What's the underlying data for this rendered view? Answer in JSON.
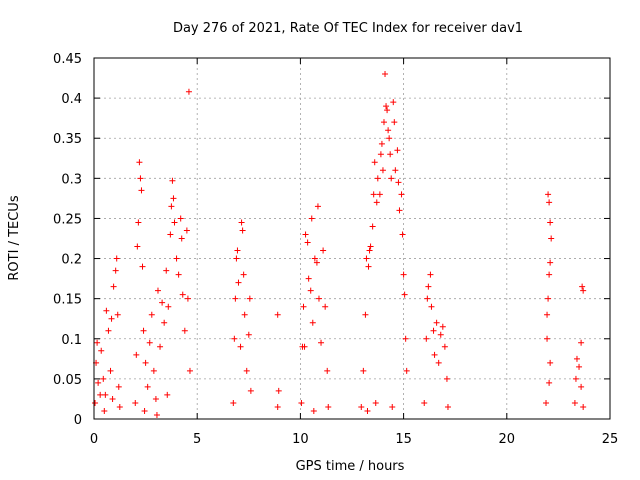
{
  "chart_data": {
    "type": "scatter",
    "title": "Day 276 of 2021, Rate Of TEC Index for receiver dav1",
    "xlabel": "GPS time / hours",
    "ylabel": "ROTI / TECUs",
    "xlim": [
      0,
      25
    ],
    "ylim": [
      0,
      0.45
    ],
    "x_ticks": [
      "0",
      "5",
      "10",
      "15",
      "20",
      "25"
    ],
    "y_ticks": [
      "0",
      "0.05",
      "0.1",
      "0.15",
      "0.2",
      "0.25",
      "0.3",
      "0.35",
      "0.4",
      "0.45"
    ],
    "grid": true,
    "legend": "none",
    "marker": "+",
    "color": "#ff0000",
    "series": [
      {
        "values": [
          {
            "x": 0.05,
            "y": 0.02
          },
          {
            "x": 0.1,
            "y": 0.07
          },
          {
            "x": 0.15,
            "y": 0.095
          },
          {
            "x": 0.2,
            "y": 0.045
          },
          {
            "x": 0.3,
            "y": 0.03
          },
          {
            "x": 0.35,
            "y": 0.085
          },
          {
            "x": 0.45,
            "y": 0.05
          },
          {
            "x": 0.55,
            "y": 0.03
          },
          {
            "x": 0.6,
            "y": 0.135
          },
          {
            "x": 0.7,
            "y": 0.11
          },
          {
            "x": 0.8,
            "y": 0.06
          },
          {
            "x": 0.85,
            "y": 0.125
          },
          {
            "x": 0.95,
            "y": 0.165
          },
          {
            "x": 1.05,
            "y": 0.185
          },
          {
            "x": 1.1,
            "y": 0.2
          },
          {
            "x": 1.15,
            "y": 0.13
          },
          {
            "x": 1.2,
            "y": 0.04
          },
          {
            "x": 1.25,
            "y": 0.015
          },
          {
            "x": 0.5,
            "y": 0.01
          },
          {
            "x": 0.9,
            "y": 0.025
          },
          {
            "x": 2.0,
            "y": 0.02
          },
          {
            "x": 2.05,
            "y": 0.08
          },
          {
            "x": 2.1,
            "y": 0.215
          },
          {
            "x": 2.15,
            "y": 0.245
          },
          {
            "x": 2.2,
            "y": 0.32
          },
          {
            "x": 2.25,
            "y": 0.3
          },
          {
            "x": 2.3,
            "y": 0.285
          },
          {
            "x": 2.35,
            "y": 0.19
          },
          {
            "x": 2.4,
            "y": 0.11
          },
          {
            "x": 2.5,
            "y": 0.07
          },
          {
            "x": 2.6,
            "y": 0.04
          },
          {
            "x": 2.7,
            "y": 0.095
          },
          {
            "x": 2.8,
            "y": 0.13
          },
          {
            "x": 2.9,
            "y": 0.06
          },
          {
            "x": 3.0,
            "y": 0.025
          },
          {
            "x": 3.1,
            "y": 0.16
          },
          {
            "x": 3.2,
            "y": 0.09
          },
          {
            "x": 3.3,
            "y": 0.145
          },
          {
            "x": 3.4,
            "y": 0.12
          },
          {
            "x": 3.5,
            "y": 0.185
          },
          {
            "x": 3.6,
            "y": 0.14
          },
          {
            "x": 3.7,
            "y": 0.23
          },
          {
            "x": 3.75,
            "y": 0.265
          },
          {
            "x": 3.8,
            "y": 0.297
          },
          {
            "x": 3.85,
            "y": 0.275
          },
          {
            "x": 3.9,
            "y": 0.245
          },
          {
            "x": 4.0,
            "y": 0.2
          },
          {
            "x": 4.1,
            "y": 0.18
          },
          {
            "x": 4.2,
            "y": 0.25
          },
          {
            "x": 4.25,
            "y": 0.225
          },
          {
            "x": 4.3,
            "y": 0.155
          },
          {
            "x": 4.4,
            "y": 0.11
          },
          {
            "x": 4.5,
            "y": 0.235
          },
          {
            "x": 4.55,
            "y": 0.15
          },
          {
            "x": 4.6,
            "y": 0.408
          },
          {
            "x": 4.65,
            "y": 0.06
          },
          {
            "x": 2.45,
            "y": 0.01
          },
          {
            "x": 3.05,
            "y": 0.005
          },
          {
            "x": 3.55,
            "y": 0.03
          },
          {
            "x": 6.75,
            "y": 0.02
          },
          {
            "x": 6.8,
            "y": 0.1
          },
          {
            "x": 6.85,
            "y": 0.15
          },
          {
            "x": 6.9,
            "y": 0.2
          },
          {
            "x": 6.95,
            "y": 0.21
          },
          {
            "x": 7.0,
            "y": 0.17
          },
          {
            "x": 7.1,
            "y": 0.09
          },
          {
            "x": 7.15,
            "y": 0.245
          },
          {
            "x": 7.2,
            "y": 0.235
          },
          {
            "x": 7.25,
            "y": 0.18
          },
          {
            "x": 7.3,
            "y": 0.13
          },
          {
            "x": 7.4,
            "y": 0.06
          },
          {
            "x": 7.5,
            "y": 0.105
          },
          {
            "x": 7.55,
            "y": 0.15
          },
          {
            "x": 7.6,
            "y": 0.035
          },
          {
            "x": 8.9,
            "y": 0.13
          },
          {
            "x": 8.95,
            "y": 0.035
          },
          {
            "x": 8.9,
            "y": 0.015
          },
          {
            "x": 10.05,
            "y": 0.02
          },
          {
            "x": 10.1,
            "y": 0.09
          },
          {
            "x": 10.15,
            "y": 0.14
          },
          {
            "x": 10.2,
            "y": 0.09
          },
          {
            "x": 10.25,
            "y": 0.23
          },
          {
            "x": 10.35,
            "y": 0.22
          },
          {
            "x": 10.4,
            "y": 0.175
          },
          {
            "x": 10.5,
            "y": 0.16
          },
          {
            "x": 10.55,
            "y": 0.25
          },
          {
            "x": 10.6,
            "y": 0.12
          },
          {
            "x": 10.7,
            "y": 0.2
          },
          {
            "x": 10.8,
            "y": 0.195
          },
          {
            "x": 10.85,
            "y": 0.265
          },
          {
            "x": 10.9,
            "y": 0.15
          },
          {
            "x": 11.0,
            "y": 0.095
          },
          {
            "x": 11.1,
            "y": 0.21
          },
          {
            "x": 11.2,
            "y": 0.14
          },
          {
            "x": 11.3,
            "y": 0.06
          },
          {
            "x": 11.35,
            "y": 0.015
          },
          {
            "x": 10.65,
            "y": 0.01
          },
          {
            "x": 12.95,
            "y": 0.015
          },
          {
            "x": 13.05,
            "y": 0.06
          },
          {
            "x": 13.15,
            "y": 0.13
          },
          {
            "x": 13.2,
            "y": 0.2
          },
          {
            "x": 13.3,
            "y": 0.19
          },
          {
            "x": 13.35,
            "y": 0.21
          },
          {
            "x": 13.4,
            "y": 0.215
          },
          {
            "x": 13.5,
            "y": 0.24
          },
          {
            "x": 13.55,
            "y": 0.28
          },
          {
            "x": 13.6,
            "y": 0.32
          },
          {
            "x": 13.7,
            "y": 0.27
          },
          {
            "x": 13.75,
            "y": 0.3
          },
          {
            "x": 13.85,
            "y": 0.28
          },
          {
            "x": 13.9,
            "y": 0.33
          },
          {
            "x": 13.95,
            "y": 0.343
          },
          {
            "x": 14.0,
            "y": 0.31
          },
          {
            "x": 14.05,
            "y": 0.37
          },
          {
            "x": 14.1,
            "y": 0.43
          },
          {
            "x": 14.15,
            "y": 0.39
          },
          {
            "x": 14.2,
            "y": 0.385
          },
          {
            "x": 14.25,
            "y": 0.36
          },
          {
            "x": 14.3,
            "y": 0.35
          },
          {
            "x": 14.35,
            "y": 0.33
          },
          {
            "x": 14.4,
            "y": 0.3
          },
          {
            "x": 14.5,
            "y": 0.395
          },
          {
            "x": 14.55,
            "y": 0.37
          },
          {
            "x": 14.6,
            "y": 0.31
          },
          {
            "x": 14.7,
            "y": 0.335
          },
          {
            "x": 14.75,
            "y": 0.295
          },
          {
            "x": 14.8,
            "y": 0.26
          },
          {
            "x": 14.9,
            "y": 0.28
          },
          {
            "x": 14.95,
            "y": 0.23
          },
          {
            "x": 15.0,
            "y": 0.18
          },
          {
            "x": 15.05,
            "y": 0.155
          },
          {
            "x": 15.1,
            "y": 0.1
          },
          {
            "x": 15.15,
            "y": 0.06
          },
          {
            "x": 13.25,
            "y": 0.01
          },
          {
            "x": 13.65,
            "y": 0.02
          },
          {
            "x": 14.45,
            "y": 0.015
          },
          {
            "x": 16.0,
            "y": 0.02
          },
          {
            "x": 16.1,
            "y": 0.1
          },
          {
            "x": 16.15,
            "y": 0.15
          },
          {
            "x": 16.2,
            "y": 0.165
          },
          {
            "x": 16.3,
            "y": 0.18
          },
          {
            "x": 16.35,
            "y": 0.14
          },
          {
            "x": 16.45,
            "y": 0.11
          },
          {
            "x": 16.5,
            "y": 0.08
          },
          {
            "x": 16.6,
            "y": 0.12
          },
          {
            "x": 16.7,
            "y": 0.07
          },
          {
            "x": 16.8,
            "y": 0.105
          },
          {
            "x": 16.9,
            "y": 0.115
          },
          {
            "x": 17.0,
            "y": 0.09
          },
          {
            "x": 17.1,
            "y": 0.05
          },
          {
            "x": 17.15,
            "y": 0.015
          },
          {
            "x": 21.9,
            "y": 0.02
          },
          {
            "x": 21.95,
            "y": 0.1
          },
          {
            "x": 22.0,
            "y": 0.28
          },
          {
            "x": 22.05,
            "y": 0.27
          },
          {
            "x": 22.1,
            "y": 0.245
          },
          {
            "x": 22.15,
            "y": 0.225
          },
          {
            "x": 22.1,
            "y": 0.195
          },
          {
            "x": 22.05,
            "y": 0.18
          },
          {
            "x": 22.0,
            "y": 0.15
          },
          {
            "x": 21.95,
            "y": 0.13
          },
          {
            "x": 22.1,
            "y": 0.07
          },
          {
            "x": 22.05,
            "y": 0.045
          },
          {
            "x": 23.3,
            "y": 0.02
          },
          {
            "x": 23.35,
            "y": 0.05
          },
          {
            "x": 23.4,
            "y": 0.075
          },
          {
            "x": 23.5,
            "y": 0.065
          },
          {
            "x": 23.6,
            "y": 0.095
          },
          {
            "x": 23.65,
            "y": 0.165
          },
          {
            "x": 23.7,
            "y": 0.16
          },
          {
            "x": 23.6,
            "y": 0.04
          },
          {
            "x": 23.7,
            "y": 0.015
          }
        ]
      }
    ]
  }
}
